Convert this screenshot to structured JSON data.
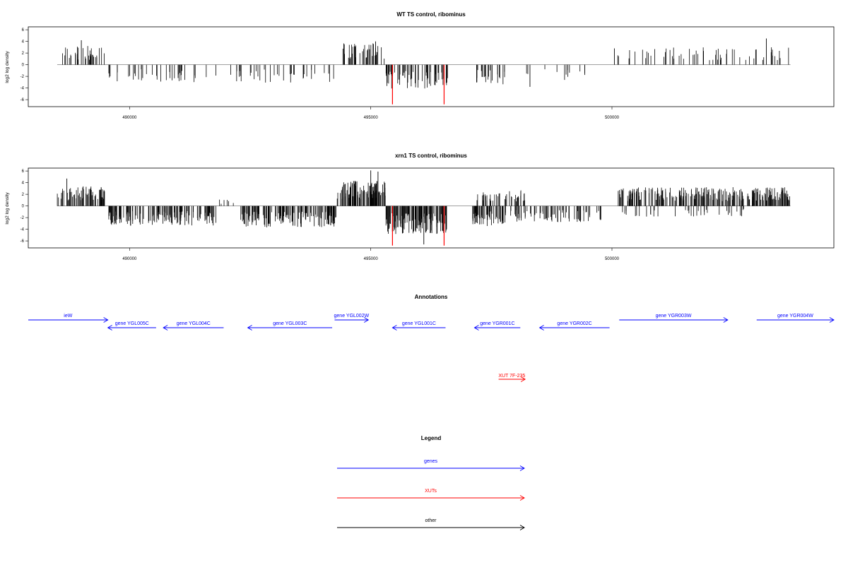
{
  "figure_title_wt": "WT TS control, ribominus",
  "figure_title_xrn1": "xrn1 TS control, ribominus",
  "annotations_title": "Annotations",
  "legend_title": "Legend",
  "colors": {
    "gene": "#0000ff",
    "xut": "#ff0000",
    "other": "#000000",
    "bar": "#000000",
    "baseline": "#808080"
  },
  "chart_data": [
    {
      "type": "bar",
      "title": "WT TS control, ribominus",
      "ylabel": "log2 log density",
      "xlabel": "",
      "xlim": [
        487900,
        504600
      ],
      "ylim": [
        -7.2,
        6.5
      ],
      "x_ticks": [
        490000,
        495000,
        500000
      ],
      "x_tick_labels": [
        "490000",
        "495000",
        "500000"
      ],
      "y_ticks": [
        -6,
        -4,
        -2,
        0,
        2,
        4,
        6
      ],
      "y_tick_labels": [
        "-6",
        "-4",
        "-2",
        "0",
        "2",
        "4",
        "6"
      ],
      "baseline_range": [
        488500,
        503700
      ],
      "segments": [
        {
          "start": 488500,
          "end": 489500,
          "sign": 1,
          "amp": 2.8,
          "n": 34
        },
        {
          "start": 489550,
          "end": 491800,
          "sign": -1,
          "amp": 2.6,
          "n": 38
        },
        {
          "start": 492000,
          "end": 494300,
          "sign": -1,
          "amp": 2.7,
          "n": 36
        },
        {
          "start": 494400,
          "end": 495300,
          "sign": 1,
          "amp": 3.2,
          "n": 38
        },
        {
          "start": 495300,
          "end": 496600,
          "sign": -1,
          "amp": 3.6,
          "n": 60
        },
        {
          "start": 497100,
          "end": 497800,
          "sign": -1,
          "amp": 3.0,
          "n": 22
        },
        {
          "start": 497900,
          "end": 499500,
          "sign": -1,
          "amp": 2.4,
          "n": 12
        },
        {
          "start": 500100,
          "end": 503700,
          "sign": 1,
          "amp": 2.6,
          "n": 58
        }
      ],
      "peaks": [
        {
          "x": 489000,
          "y": 4.2
        },
        {
          "x": 494450,
          "y": 3.5
        },
        {
          "x": 495100,
          "y": 4.0
        },
        {
          "x": 500050,
          "y": 2.8
        },
        {
          "x": 503200,
          "y": 4.5
        },
        {
          "x": 498300,
          "y": -3.8
        }
      ],
      "highlight_bars": [
        {
          "x": 495450,
          "y": -6.8,
          "color": "#ff0000"
        },
        {
          "x": 496520,
          "y": -6.8,
          "color": "#ff0000"
        }
      ]
    },
    {
      "type": "bar",
      "title": "xrn1 TS control, ribominus",
      "ylabel": "log2 log density",
      "xlabel": "",
      "xlim": [
        487900,
        504600
      ],
      "ylim": [
        -7.2,
        6.5
      ],
      "x_ticks": [
        490000,
        495000,
        500000
      ],
      "x_tick_labels": [
        "490000",
        "495000",
        "500000"
      ],
      "y_ticks": [
        -6,
        -4,
        -2,
        0,
        2,
        4,
        6
      ],
      "y_tick_labels": [
        "-6",
        "-4",
        "-2",
        "0",
        "2",
        "4",
        "6"
      ],
      "baseline_range": [
        488500,
        503700
      ],
      "segments": [
        {
          "start": 488500,
          "end": 489500,
          "sign": 1,
          "amp": 3.0,
          "n": 70
        },
        {
          "start": 489550,
          "end": 491800,
          "sign": -1,
          "amp": 3.0,
          "n": 150
        },
        {
          "start": 491850,
          "end": 492300,
          "sign": 1,
          "amp": 1.0,
          "n": 6
        },
        {
          "start": 492300,
          "end": 494300,
          "sign": -1,
          "amp": 3.2,
          "n": 150
        },
        {
          "start": 494300,
          "end": 495300,
          "sign": 1,
          "amp": 4.0,
          "n": 100
        },
        {
          "start": 495300,
          "end": 496600,
          "sign": -1,
          "amp": 4.2,
          "n": 140
        },
        {
          "start": 497100,
          "end": 497800,
          "sign": -1,
          "amp": 3.0,
          "n": 60
        },
        {
          "start": 497200,
          "end": 498300,
          "sign": 1,
          "amp": 2.4,
          "n": 40
        },
        {
          "start": 497900,
          "end": 499800,
          "sign": -1,
          "amp": 2.4,
          "n": 70
        },
        {
          "start": 500100,
          "end": 503700,
          "sign": 1,
          "amp": 2.8,
          "n": 260
        },
        {
          "start": 500200,
          "end": 502800,
          "sign": -1,
          "amp": 1.6,
          "n": 40
        }
      ],
      "peaks": [
        {
          "x": 495000,
          "y": 6.1
        },
        {
          "x": 495150,
          "y": 5.9
        },
        {
          "x": 496100,
          "y": -6.6
        },
        {
          "x": 488700,
          "y": 4.7
        }
      ],
      "highlight_bars": [
        {
          "x": 495450,
          "y": -6.8,
          "color": "#ff0000"
        },
        {
          "x": 496520,
          "y": -6.8,
          "color": "#ff0000"
        }
      ]
    }
  ],
  "annotations": {
    "genes": [
      {
        "label": "ieW",
        "start": 487900,
        "end": 489550,
        "dir": "right",
        "row": 0
      },
      {
        "label": "gene YGL005C",
        "start": 489550,
        "end": 490550,
        "dir": "left",
        "row": 1
      },
      {
        "label": "gene YGL004C",
        "start": 490700,
        "end": 491950,
        "dir": "left",
        "row": 1
      },
      {
        "label": "gene YGL003C",
        "start": 492450,
        "end": 494200,
        "dir": "left",
        "row": 1
      },
      {
        "label": "gene YGL002W",
        "start": 494250,
        "end": 494950,
        "dir": "right",
        "row": 0
      },
      {
        "label": "gene YGL001C",
        "start": 495450,
        "end": 496550,
        "dir": "left",
        "row": 1
      },
      {
        "label": "gene YGR001C",
        "start": 497150,
        "end": 498100,
        "dir": "left",
        "row": 1
      },
      {
        "label": "gene YGR002C",
        "start": 498500,
        "end": 499950,
        "dir": "left",
        "row": 1
      },
      {
        "label": "gene YGR003W",
        "start": 500150,
        "end": 502400,
        "dir": "right",
        "row": 0
      },
      {
        "label": "gene YGR004W",
        "start": 503000,
        "end": 504600,
        "dir": "right",
        "row": 0
      }
    ],
    "xuts": [
      {
        "label": "XUT 7F-235",
        "start": 497650,
        "end": 498200,
        "dir": "right"
      }
    ]
  },
  "legend": [
    {
      "label": "genes",
      "key": "gene"
    },
    {
      "label": "XUTs",
      "key": "xut"
    },
    {
      "label": "other",
      "key": "other"
    }
  ]
}
